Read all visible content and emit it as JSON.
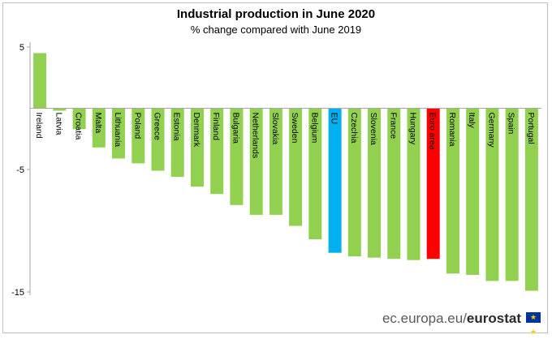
{
  "chart_data": {
    "type": "bar",
    "title": "Industrial production in June 2020",
    "subtitle": "% change compared with June 2019",
    "xlabel": "",
    "ylabel": "",
    "ylim": [
      -15.3,
      5.3
    ],
    "yticks": [
      5,
      -5,
      -15
    ],
    "grid": false,
    "categories": [
      "Ireland",
      "Latvia",
      "Croatia",
      "Malta",
      "Lithuania",
      "Poland",
      "Greece",
      "Estonia",
      "Denmark",
      "Finland",
      "Bulgaria",
      "Netherlands",
      "Slovakia",
      "Sweden",
      "Belgium",
      "EU",
      "Czechia",
      "Slovenia",
      "France",
      "Hungary",
      "Euro area",
      "Romania",
      "Italy",
      "Germany",
      "Spain",
      "Portugal"
    ],
    "values": [
      4.5,
      -0.2,
      -1.7,
      -3.2,
      -4.1,
      -4.5,
      -5.1,
      -5.6,
      -6.4,
      -7.0,
      -7.9,
      -8.7,
      -8.7,
      -9.6,
      -10.7,
      -11.8,
      -12.1,
      -12.2,
      -12.3,
      -12.4,
      -12.3,
      -13.5,
      -13.6,
      -14.1,
      -14.1,
      -14.9
    ],
    "colors": {
      "default": "#92d050",
      "EU": "#00b0f0",
      "Euro area": "#ff0000"
    }
  },
  "source": {
    "prefix": "ec.europa.eu/",
    "brand": "eurostat",
    "flag_icon": "eu-flag-icon"
  }
}
